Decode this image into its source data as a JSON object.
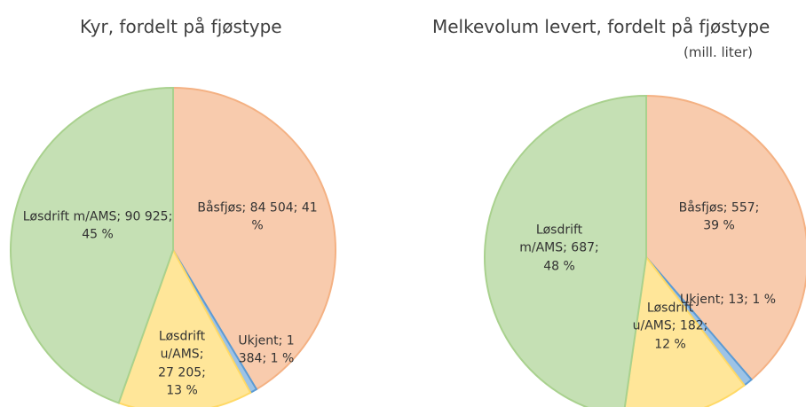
{
  "chart_data": [
    {
      "type": "pie",
      "title": "Kyr, fordelt på fjøstype",
      "categories": [
        "Båsfjøs",
        "Ukjent",
        "Løsdrift u/AMS",
        "Løsdrift m/AMS"
      ],
      "values": [
        84504,
        1384,
        27205,
        90925
      ],
      "value_labels": [
        "Båsfjøs; 84 504; 41 %",
        "Ukjent; 1 384; 1 %",
        "Løsdrift u/AMS; 27 205; 13 %",
        "Løsdrift m/AMS; 90 925; 45 %"
      ],
      "colors": [
        "#f8cbad",
        "#9dc3e6",
        "#ffe699",
        "#c5e0b4"
      ]
    },
    {
      "type": "pie",
      "title": "Melkevolum levert, fordelt på fjøstype",
      "subtitle": "(mill. liter)",
      "categories": [
        "Båsfjøs",
        "Ukjent",
        "Løsdrift u/AMS",
        "Løsdrift m/AMS"
      ],
      "values": [
        557,
        13,
        182,
        687
      ],
      "value_labels": [
        "Båsfjøs; 557; 39 %",
        "Ukjent; 13; 1 %",
        "Løsdrift u/AMS; 182; 12 %",
        "Løsdrift m/AMS; 687; 48 %"
      ],
      "colors": [
        "#f8cbad",
        "#9dc3e6",
        "#ffe699",
        "#c5e0b4"
      ]
    }
  ]
}
